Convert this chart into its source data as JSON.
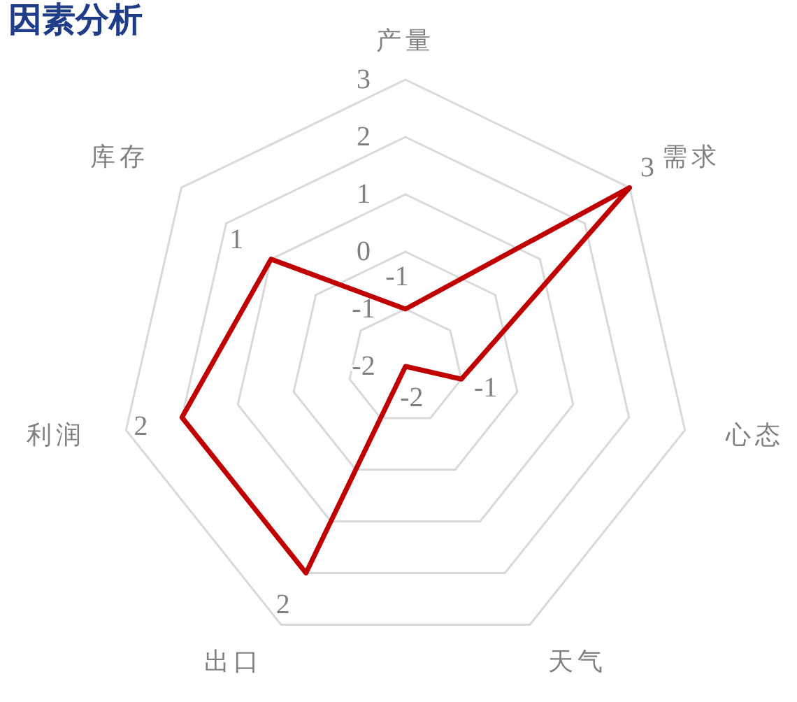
{
  "chart_data": {
    "type": "radar",
    "title": "因素分析",
    "categories": [
      "产量",
      "需求",
      "心态",
      "天气",
      "出口",
      "利润",
      "库存"
    ],
    "series": [
      {
        "color": "#c00000",
        "values": [
          -1,
          3,
          -1,
          -2,
          2,
          2,
          1
        ]
      }
    ],
    "ylim": [
      -2,
      3
    ],
    "yticks": [
      -2,
      -1,
      0,
      1,
      2,
      3
    ],
    "grid": true,
    "data_labels": true
  }
}
